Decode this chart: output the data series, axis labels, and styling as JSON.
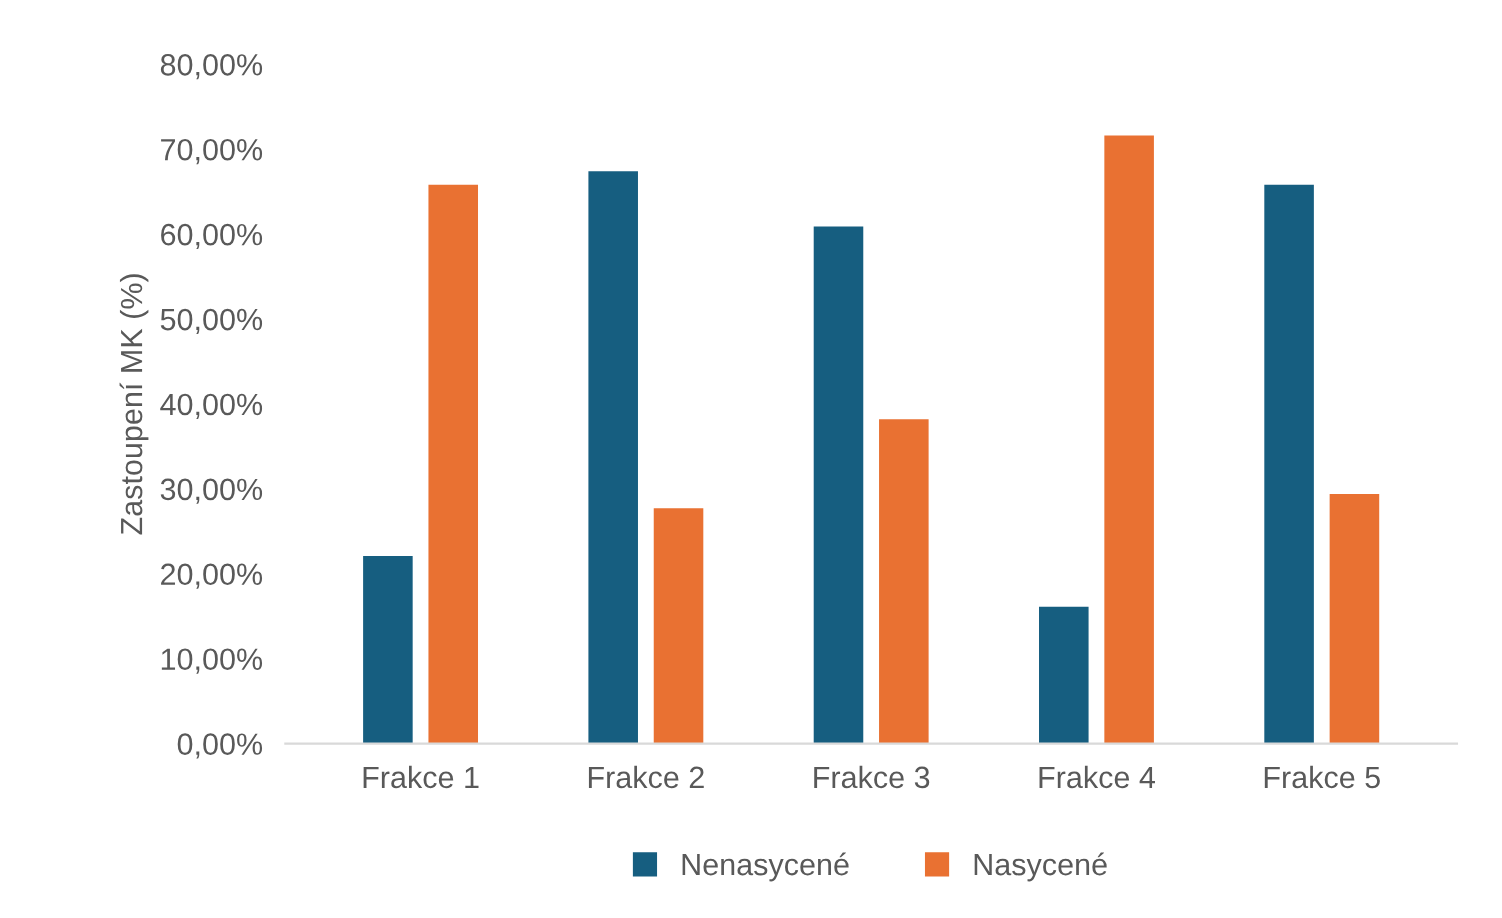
{
  "chart_data": {
    "type": "bar",
    "ylabel": "Zastoupení MK (%)",
    "categories": [
      "Frakce 1",
      "Frakce 2",
      "Frakce 3",
      "Frakce 4",
      "Frakce 5"
    ],
    "series": [
      {
        "name": "Nenasycené",
        "color": "#165e80",
        "values": [
          22.1,
          67.4,
          60.9,
          16.1,
          65.8
        ]
      },
      {
        "name": "Nasycené",
        "color": "#e97132",
        "values": [
          65.8,
          27.7,
          38.2,
          71.6,
          29.4
        ]
      }
    ],
    "ylim": [
      0,
      80
    ],
    "yticks": [
      {
        "value": 0,
        "label": "0,00%"
      },
      {
        "value": 10,
        "label": "10,00%"
      },
      {
        "value": 20,
        "label": "20,00%"
      },
      {
        "value": 30,
        "label": "30,00%"
      },
      {
        "value": 40,
        "label": "40,00%"
      },
      {
        "value": 50,
        "label": "50,00%"
      },
      {
        "value": 60,
        "label": "60,00%"
      },
      {
        "value": 70,
        "label": "70,00%"
      },
      {
        "value": 80,
        "label": "80,00%"
      }
    ],
    "grid": false,
    "legend": "bottom"
  }
}
